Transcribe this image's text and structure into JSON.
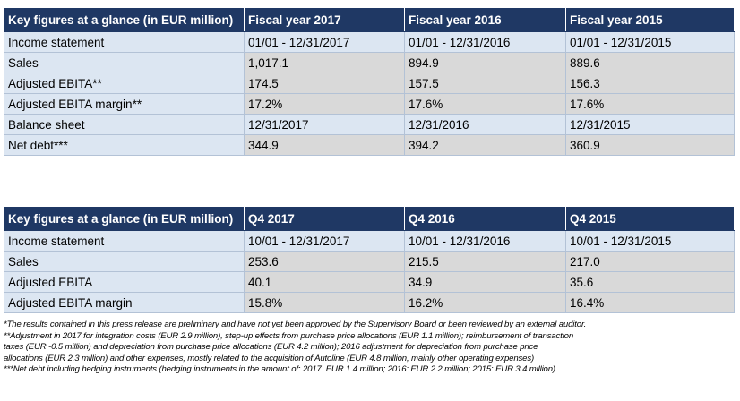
{
  "table1": {
    "headers": [
      "Key figures at a glance (in EUR million)",
      "Fiscal year 2017",
      "Fiscal year 2016",
      "Fiscal year 2015"
    ],
    "rows": [
      [
        "Income statement",
        "01/01 - 12/31/2017",
        "01/01 - 12/31/2016",
        "01/01 - 12/31/2015"
      ],
      [
        "Sales",
        "1,017.1",
        "894.9",
        "889.6"
      ],
      [
        "Adjusted EBITA**",
        "174.5",
        "157.5",
        "156.3"
      ],
      [
        "Adjusted EBITA margin**",
        "17.2%",
        "17.6%",
        "17.6%"
      ],
      [
        "Balance sheet",
        "12/31/2017",
        "12/31/2016",
        "12/31/2015"
      ],
      [
        "Net debt***",
        "344.9",
        "394.2",
        "360.9"
      ]
    ]
  },
  "table2": {
    "headers": [
      "Key figures at a glance (in EUR million)",
      "Q4 2017",
      "Q4 2016",
      "Q4 2015"
    ],
    "rows": [
      [
        "Income statement",
        "10/01 - 12/31/2017",
        "10/01 - 12/31/2016",
        "10/01 - 12/31/2015"
      ],
      [
        "Sales",
        "253.6",
        "215.5",
        "217.0"
      ],
      [
        "Adjusted EBITA",
        "40.1",
        "34.9",
        "35.6"
      ],
      [
        "Adjusted EBITA margin",
        "15.8%",
        "16.2%",
        "16.4%"
      ]
    ]
  },
  "footnotes": [
    "*The results contained in this press release are preliminary and have not yet been approved by the Supervisory Board or been reviewed by an external auditor.",
    "**Adjustment in 2017 for integration costs (EUR 2.9 million), step-up effects from purchase price allocations (EUR 1.1 million); reimbursement of transaction",
    "taxes (EUR -0.5 million) and depreciation from purchase price allocations (EUR 4.2 million); 2016 adjustment for depreciation from purchase price",
    "allocations (EUR 2.3 million) and other expenses, mostly related to the acquisition of Autoline (EUR 4.8 million, mainly other operating expenses)",
    "***Net debt including hedging instruments (hedging instruments in the amount of: 2017: EUR 1.4 million; 2016: EUR 2.2 million; 2015: EUR 3.4 million)"
  ],
  "colors": {
    "header_bg": "#1f3864",
    "header_text": "#ffffff",
    "blue_row_bg": "#dce6f2",
    "gray_row_bg": "#d9d9d9",
    "border": "#b3c2d6"
  }
}
